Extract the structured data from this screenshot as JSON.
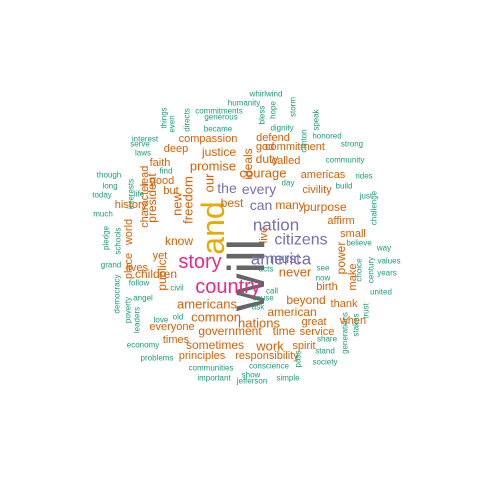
{
  "colors": {
    "teal": "#1b9e77",
    "orange": "#d95f02",
    "purple": "#7570b3",
    "magenta": "#e7298a",
    "gold": "#e6ab02",
    "gray": "#666666"
  },
  "words": [
    {
      "text": "will",
      "color": "gray",
      "tier": 1
    },
    {
      "text": "and",
      "color": "gold",
      "tier": 2
    },
    {
      "text": "country",
      "color": "magenta",
      "tier": 3
    },
    {
      "text": "story",
      "color": "magenta",
      "tier": 3
    },
    {
      "text": "america",
      "color": "purple",
      "tier": 4
    },
    {
      "text": "nation",
      "color": "purple",
      "tier": 4
    },
    {
      "text": "citizens",
      "color": "purple",
      "tier": 4
    },
    {
      "text": "every",
      "color": "purple",
      "tier": 5
    },
    {
      "text": "the",
      "color": "purple",
      "tier": 5
    },
    {
      "text": "can",
      "color": "purple",
      "tier": 5
    },
    {
      "text": "must",
      "color": "purple",
      "tier": 5
    },
    {
      "text": "courage",
      "color": "orange",
      "tier": 5
    },
    {
      "text": "promise",
      "color": "orange",
      "tier": 5
    },
    {
      "text": "freedom",
      "color": "orange",
      "tier": 5
    },
    {
      "text": "new",
      "color": "orange",
      "tier": 5
    },
    {
      "text": "americans",
      "color": "orange",
      "tier": 5
    },
    {
      "text": "common",
      "color": "orange",
      "tier": 5
    },
    {
      "text": "nations",
      "color": "orange",
      "tier": 5
    },
    {
      "text": "never",
      "color": "orange",
      "tier": 5
    },
    {
      "text": "work",
      "color": "orange",
      "tier": 5
    },
    {
      "text": "our",
      "color": "orange",
      "tier": 5
    },
    {
      "text": "justice",
      "color": "orange",
      "tier": 6
    },
    {
      "text": "duty",
      "color": "orange",
      "tier": 6
    },
    {
      "text": "many",
      "color": "orange",
      "tier": 6
    },
    {
      "text": "purpose",
      "color": "orange",
      "tier": 6
    },
    {
      "text": "know",
      "color": "orange",
      "tier": 6
    },
    {
      "text": "public",
      "color": "orange",
      "tier": 6
    },
    {
      "text": "children",
      "color": "orange",
      "tier": 6
    },
    {
      "text": "government",
      "color": "orange",
      "tier": 6
    },
    {
      "text": "time",
      "color": "orange",
      "tier": 6
    },
    {
      "text": "sometimes",
      "color": "orange",
      "tier": 6
    },
    {
      "text": "beyond",
      "color": "orange",
      "tier": 6
    },
    {
      "text": "american",
      "color": "orange",
      "tier": 6
    },
    {
      "text": "president",
      "color": "orange",
      "tier": 6
    },
    {
      "text": "best",
      "color": "orange",
      "tier": 6
    },
    {
      "text": "power",
      "color": "orange",
      "tier": 6
    },
    {
      "text": "ideals",
      "color": "orange",
      "tier": 6
    },
    {
      "text": "character",
      "color": "orange",
      "tier": 7
    },
    {
      "text": "civility",
      "color": "orange",
      "tier": 7
    },
    {
      "text": "spirit",
      "color": "orange",
      "tier": 7
    },
    {
      "text": "commitment",
      "color": "orange",
      "tier": 7
    },
    {
      "text": "compassion",
      "color": "orange",
      "tier": 7
    },
    {
      "text": "deep",
      "color": "orange",
      "tier": 7
    },
    {
      "text": "called",
      "color": "orange",
      "tier": 7
    },
    {
      "text": "defend",
      "color": "orange",
      "tier": 7
    },
    {
      "text": "god",
      "color": "orange",
      "tier": 7
    },
    {
      "text": "americas",
      "color": "orange",
      "tier": 7
    },
    {
      "text": "faith",
      "color": "orange",
      "tier": 7
    },
    {
      "text": "good",
      "color": "orange",
      "tier": 7
    },
    {
      "text": "but",
      "color": "orange",
      "tier": 7
    },
    {
      "text": "yet",
      "color": "orange",
      "tier": 7
    },
    {
      "text": "lead",
      "color": "orange",
      "tier": 7
    },
    {
      "text": "history",
      "color": "orange",
      "tier": 7
    },
    {
      "text": "lives",
      "color": "orange",
      "tier": 7
    },
    {
      "text": "world",
      "color": "orange",
      "tier": 7
    },
    {
      "text": "place",
      "color": "orange",
      "tier": 7
    },
    {
      "text": "everyone",
      "color": "orange",
      "tier": 7
    },
    {
      "text": "times",
      "color": "orange",
      "tier": 7
    },
    {
      "text": "principles",
      "color": "orange",
      "tier": 7
    },
    {
      "text": "responsibility",
      "color": "orange",
      "tier": 7
    },
    {
      "text": "service",
      "color": "orange",
      "tier": 7
    },
    {
      "text": "great",
      "color": "orange",
      "tier": 7
    },
    {
      "text": "thank",
      "color": "orange",
      "tier": 7
    },
    {
      "text": "birth",
      "color": "orange",
      "tier": 7
    },
    {
      "text": "when",
      "color": "orange",
      "tier": 7
    },
    {
      "text": "small",
      "color": "orange",
      "tier": 7
    },
    {
      "text": "affirm",
      "color": "orange",
      "tier": 7
    },
    {
      "text": "make",
      "color": "orange",
      "tier": 7
    },
    {
      "text": "live",
      "color": "orange",
      "tier": 7
    },
    {
      "text": "whirlwind",
      "color": "teal",
      "tier": 8
    },
    {
      "text": "humanity",
      "color": "teal",
      "tier": 8
    },
    {
      "text": "generous",
      "color": "teal",
      "tier": 8
    },
    {
      "text": "commitments",
      "color": "teal",
      "tier": 8
    },
    {
      "text": "became",
      "color": "teal",
      "tier": 8
    },
    {
      "text": "dignity",
      "color": "teal",
      "tier": 8
    },
    {
      "text": "bless",
      "color": "teal",
      "tier": 8
    },
    {
      "text": "hope",
      "color": "teal",
      "tier": 8
    },
    {
      "text": "storm",
      "color": "teal",
      "tier": 8
    },
    {
      "text": "speak",
      "color": "teal",
      "tier": 8
    },
    {
      "text": "clinton",
      "color": "teal",
      "tier": 8
    },
    {
      "text": "honored",
      "color": "teal",
      "tier": 8
    },
    {
      "text": "strong",
      "color": "teal",
      "tier": 8
    },
    {
      "text": "community",
      "color": "teal",
      "tier": 8
    },
    {
      "text": "rides",
      "color": "teal",
      "tier": 8
    },
    {
      "text": "build",
      "color": "teal",
      "tier": 8
    },
    {
      "text": "just",
      "color": "teal",
      "tier": 8
    },
    {
      "text": "challenge",
      "color": "teal",
      "tier": 8
    },
    {
      "text": "day",
      "color": "teal",
      "tier": 8
    },
    {
      "text": "directs",
      "color": "teal",
      "tier": 8
    },
    {
      "text": "things",
      "color": "teal",
      "tier": 8
    },
    {
      "text": "even",
      "color": "teal",
      "tier": 8
    },
    {
      "text": "interest",
      "color": "teal",
      "tier": 8
    },
    {
      "text": "serve",
      "color": "teal",
      "tier": 8
    },
    {
      "text": "laws",
      "color": "teal",
      "tier": 8
    },
    {
      "text": "find",
      "color": "teal",
      "tier": 8
    },
    {
      "text": "though",
      "color": "teal",
      "tier": 8
    },
    {
      "text": "long",
      "color": "teal",
      "tier": 8
    },
    {
      "text": "life",
      "color": "teal",
      "tier": 8
    },
    {
      "text": "today",
      "color": "teal",
      "tier": 8
    },
    {
      "text": "interests",
      "color": "teal",
      "tier": 8
    },
    {
      "text": "much",
      "color": "teal",
      "tier": 8
    },
    {
      "text": "pledge",
      "color": "teal",
      "tier": 8
    },
    {
      "text": "schools",
      "color": "teal",
      "tier": 8
    },
    {
      "text": "grand",
      "color": "teal",
      "tier": 8
    },
    {
      "text": "follow",
      "color": "teal",
      "tier": 8
    },
    {
      "text": "angel",
      "color": "teal",
      "tier": 8
    },
    {
      "text": "democracy",
      "color": "teal",
      "tier": 8
    },
    {
      "text": "poverty",
      "color": "teal",
      "tier": 8
    },
    {
      "text": "leaders",
      "color": "teal",
      "tier": 8
    },
    {
      "text": "civil",
      "color": "teal",
      "tier": 8
    },
    {
      "text": "old",
      "color": "teal",
      "tier": 8
    },
    {
      "text": "love",
      "color": "teal",
      "tier": 8
    },
    {
      "text": "economy",
      "color": "teal",
      "tier": 8
    },
    {
      "text": "problems",
      "color": "teal",
      "tier": 8
    },
    {
      "text": "communities",
      "color": "teal",
      "tier": 8
    },
    {
      "text": "important",
      "color": "teal",
      "tier": 8
    },
    {
      "text": "conscience",
      "color": "teal",
      "tier": 8
    },
    {
      "text": "show",
      "color": "teal",
      "tier": 8
    },
    {
      "text": "jefferson",
      "color": "teal",
      "tier": 8
    },
    {
      "text": "simple",
      "color": "teal",
      "tier": 8
    },
    {
      "text": "pass",
      "color": "teal",
      "tier": 8
    },
    {
      "text": "stand",
      "color": "teal",
      "tier": 8
    },
    {
      "text": "society",
      "color": "teal",
      "tier": 8
    },
    {
      "text": "share",
      "color": "teal",
      "tier": 8
    },
    {
      "text": "generations",
      "color": "teal",
      "tier": 8
    },
    {
      "text": "stakes",
      "color": "teal",
      "tier": 8
    },
    {
      "text": "trust",
      "color": "teal",
      "tier": 8
    },
    {
      "text": "united",
      "color": "teal",
      "tier": 8
    },
    {
      "text": "years",
      "color": "teal",
      "tier": 8
    },
    {
      "text": "values",
      "color": "teal",
      "tier": 8
    },
    {
      "text": "way",
      "color": "teal",
      "tier": 8
    },
    {
      "text": "believe",
      "color": "teal",
      "tier": 8
    },
    {
      "text": "choice",
      "color": "teal",
      "tier": 8
    },
    {
      "text": "century",
      "color": "teal",
      "tier": 8
    },
    {
      "text": "see",
      "color": "teal",
      "tier": 8
    },
    {
      "text": "now",
      "color": "teal",
      "tier": 8
    },
    {
      "text": "acts",
      "color": "teal",
      "tier": 8
    },
    {
      "text": "call",
      "color": "teal",
      "tier": 8
    },
    {
      "text": "cause",
      "color": "teal",
      "tier": 8
    },
    {
      "text": "ask",
      "color": "teal",
      "tier": 8
    }
  ]
}
